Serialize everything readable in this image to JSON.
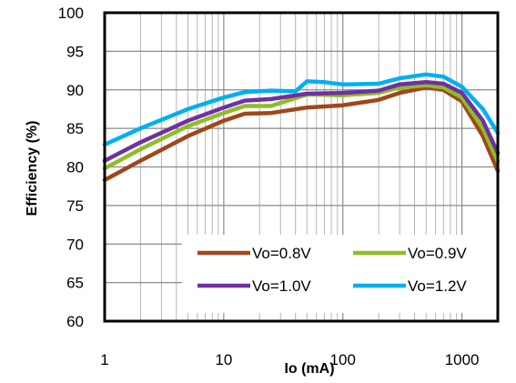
{
  "chart_data": {
    "type": "line",
    "title": "",
    "xlabel": "Io (mA)",
    "ylabel": "Efficiency (%)",
    "x_scale": "log",
    "xlim": [
      1,
      2000
    ],
    "ylim": [
      60,
      100
    ],
    "x_ticks": [
      1,
      10,
      100,
      1000
    ],
    "x_tick_labels": [
      "1",
      "10",
      "100",
      "1000"
    ],
    "y_ticks": [
      60,
      65,
      70,
      75,
      80,
      85,
      90,
      95,
      100
    ],
    "y_tick_labels": [
      "60",
      "65",
      "70",
      "75",
      "80",
      "85",
      "90",
      "95",
      "100"
    ],
    "grid": true,
    "legend_position": "bottom-right",
    "series": [
      {
        "name": "Vo=0.8V",
        "color": "#a0471a",
        "points": [
          [
            1,
            78.3
          ],
          [
            2,
            80.8
          ],
          [
            5,
            84.0
          ],
          [
            10,
            86.0
          ],
          [
            15,
            86.9
          ],
          [
            25,
            87.0
          ],
          [
            50,
            87.7
          ],
          [
            100,
            88.0
          ],
          [
            200,
            88.7
          ],
          [
            300,
            89.6
          ],
          [
            500,
            90.3
          ],
          [
            700,
            90.0
          ],
          [
            1000,
            88.5
          ],
          [
            1500,
            84.0
          ],
          [
            2000,
            79.5
          ]
        ]
      },
      {
        "name": "Vo=0.9V",
        "color": "#8cbf26",
        "points": [
          [
            1,
            79.8
          ],
          [
            2,
            82.3
          ],
          [
            5,
            85.3
          ],
          [
            10,
            87.0
          ],
          [
            15,
            87.9
          ],
          [
            25,
            87.9
          ],
          [
            50,
            89.4
          ],
          [
            100,
            89.3
          ],
          [
            200,
            89.6
          ],
          [
            300,
            90.3
          ],
          [
            500,
            90.6
          ],
          [
            700,
            90.3
          ],
          [
            1000,
            89.0
          ],
          [
            1500,
            85.0
          ],
          [
            2000,
            80.7
          ]
        ]
      },
      {
        "name": "Vo=1.0V",
        "color": "#7030a0",
        "points": [
          [
            1,
            80.8
          ],
          [
            2,
            83.2
          ],
          [
            5,
            86.0
          ],
          [
            10,
            87.7
          ],
          [
            15,
            88.6
          ],
          [
            25,
            88.8
          ],
          [
            50,
            89.5
          ],
          [
            100,
            89.6
          ],
          [
            200,
            89.9
          ],
          [
            300,
            90.7
          ],
          [
            500,
            91.0
          ],
          [
            700,
            90.8
          ],
          [
            1000,
            89.6
          ],
          [
            1500,
            86.0
          ],
          [
            2000,
            81.8
          ]
        ]
      },
      {
        "name": "Vo=1.2V",
        "color": "#00b0f0",
        "points": [
          [
            1,
            82.9
          ],
          [
            2,
            85.0
          ],
          [
            5,
            87.5
          ],
          [
            10,
            89.0
          ],
          [
            15,
            89.7
          ],
          [
            25,
            89.9
          ],
          [
            40,
            89.8
          ],
          [
            50,
            91.1
          ],
          [
            70,
            91.0
          ],
          [
            100,
            90.7
          ],
          [
            200,
            90.8
          ],
          [
            300,
            91.5
          ],
          [
            500,
            92.0
          ],
          [
            700,
            91.7
          ],
          [
            1000,
            90.4
          ],
          [
            1500,
            87.5
          ],
          [
            2000,
            84.4
          ]
        ]
      }
    ]
  }
}
